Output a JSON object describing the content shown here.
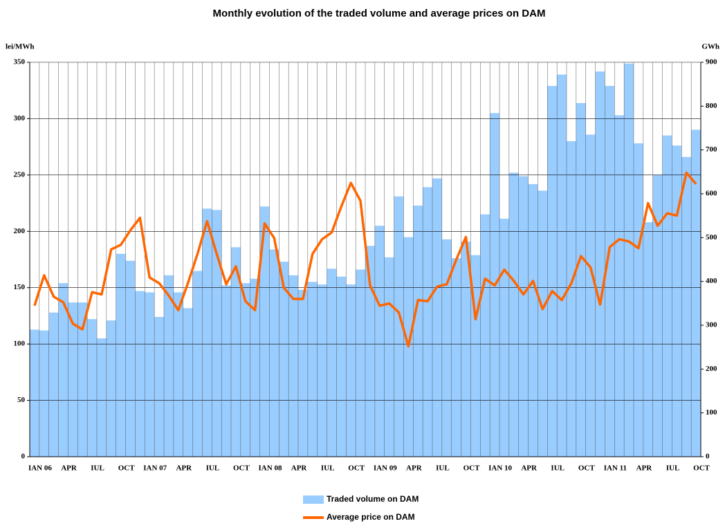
{
  "chart_data": {
    "type": "bar-line",
    "title": "Monthly evolution of the traded volume and average prices on DAM",
    "y_label": "lei/MWh",
    "y2_label": "GWh",
    "categories": [
      "IAN 06",
      null,
      null,
      "APR",
      null,
      null,
      "IUL",
      null,
      null,
      "OCT",
      null,
      null,
      "IAN 07",
      null,
      null,
      "APR",
      null,
      null,
      "IUL",
      null,
      null,
      "OCT",
      null,
      null,
      "IAN 08",
      null,
      null,
      "APR",
      null,
      null,
      "IUL",
      null,
      null,
      "OCT",
      null,
      null,
      "IAN 09",
      null,
      null,
      "APR",
      null,
      null,
      "IUL",
      null,
      null,
      "OCT",
      null,
      null,
      "IAN 10",
      null,
      null,
      "APR",
      null,
      null,
      "IUL",
      null,
      null,
      "OCT",
      null,
      null,
      "IAN 11",
      null,
      null,
      "APR",
      null,
      null,
      "IUL",
      null,
      null,
      "OCT"
    ],
    "series": [
      {
        "name": "Traded volume on DAM",
        "type": "bar",
        "axis": "y2",
        "color": "#99ccff",
        "values": [
          290,
          288,
          329,
          396,
          352,
          352,
          314,
          270,
          311,
          463,
          447,
          378,
          375,
          319,
          414,
          375,
          339,
          424,
          566,
          563,
          391,
          478,
          396,
          406,
          571,
          473,
          445,
          414,
          381,
          399,
          393,
          429,
          411,
          393,
          427,
          481,
          527,
          455,
          594,
          501,
          573,
          615,
          635,
          496,
          453,
          491,
          460,
          553,
          784,
          543,
          648,
          640,
          622,
          607,
          846,
          872,
          720,
          807,
          735,
          879,
          846,
          779,
          897,
          715,
          535,
          643,
          733,
          710,
          684,
          746
        ]
      },
      {
        "name": "Average price on DAM",
        "type": "line",
        "axis": "y",
        "color": "#ff6600",
        "values": [
          134,
          161,
          142,
          137,
          118,
          113,
          146,
          144,
          184,
          188,
          201,
          212,
          159,
          154,
          143,
          130,
          154,
          180,
          209,
          180,
          153,
          169,
          138,
          130,
          207,
          194,
          150,
          140,
          140,
          180,
          193,
          199,
          222,
          243,
          227,
          152,
          134,
          136,
          128,
          98,
          139,
          138,
          151,
          153,
          175,
          195,
          122,
          158,
          152,
          166,
          156,
          144,
          156,
          131,
          147,
          139,
          154,
          178,
          168,
          135,
          186,
          193,
          191,
          185,
          225,
          205,
          216,
          214,
          252,
          242
        ]
      }
    ],
    "ylim": [
      0,
      350
    ],
    "yticks": [
      0,
      50,
      100,
      150,
      200,
      250,
      300,
      350
    ],
    "y2lim": [
      0,
      900
    ],
    "y2ticks": [
      0,
      100,
      200,
      300,
      400,
      500,
      600,
      700,
      800,
      900
    ],
    "grid": true,
    "legend": "bottom"
  }
}
